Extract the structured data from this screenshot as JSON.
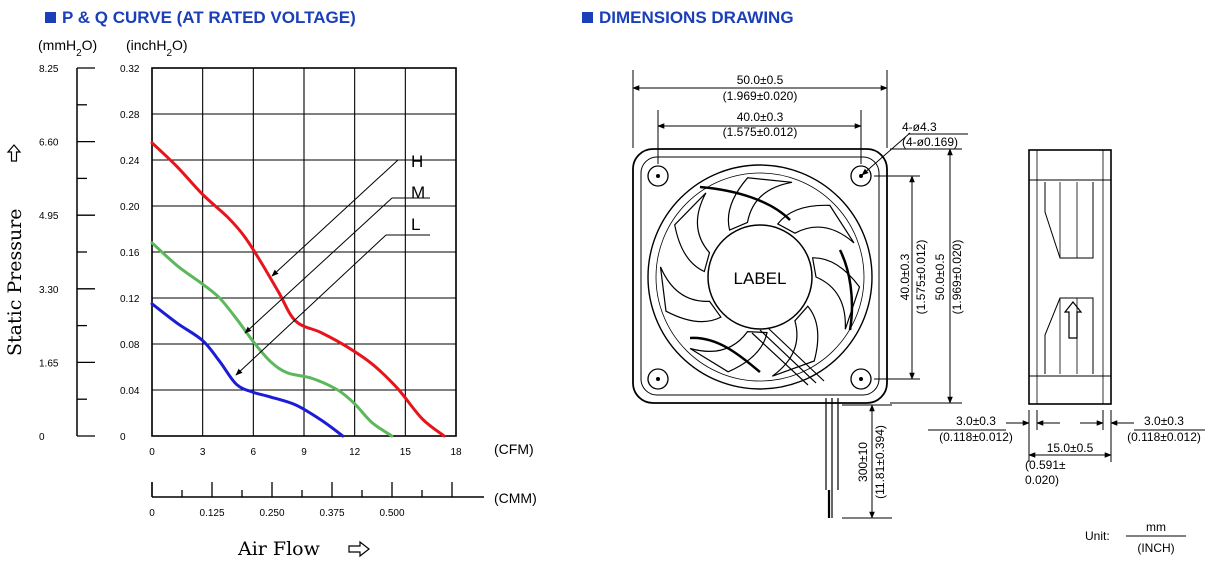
{
  "pq_title": "P & Q CURVE (AT RATED VOLTAGE)",
  "dim_title": "DIMENSIONS DRAWING",
  "chart_data": {
    "type": "line",
    "title": "P & Q CURVE (AT RATED VOLTAGE)",
    "ylabel": "Static Pressure",
    "xlabel": "Air Flow",
    "y_unit_left": "(mmH2O)",
    "y_unit_right": "(inchH2O)",
    "x_unit": "(CFM)",
    "x2_unit": "(CMM)",
    "xlim": [
      0,
      18
    ],
    "ylim_inch": [
      0,
      0.32
    ],
    "x_ticks": [
      "0",
      "3",
      "6",
      "9",
      "12",
      "15",
      "18"
    ],
    "x2_ticks": [
      "0",
      "0.125",
      "0.250",
      "0.375",
      "0.500"
    ],
    "y_ticks_inch": [
      "0",
      "0.04",
      "0.08",
      "0.12",
      "0.16",
      "0.20",
      "0.24",
      "0.28",
      "0.32"
    ],
    "y_ticks_mm": [
      "0",
      "1.65",
      "3.30",
      "4.95",
      "6.60",
      "8.25"
    ],
    "series": [
      {
        "name": "H",
        "color": "#e8141b",
        "x": [
          0,
          1.5,
          3,
          4.5,
          5.5,
          6.5,
          7.5,
          8.5,
          10,
          11.5,
          13,
          14.5,
          16,
          17.3
        ],
        "y": [
          0.255,
          0.234,
          0.21,
          0.19,
          0.173,
          0.15,
          0.125,
          0.1,
          0.09,
          0.078,
          0.063,
          0.042,
          0.015,
          0
        ]
      },
      {
        "name": "M",
        "color": "#5cb85c",
        "x": [
          0,
          1.5,
          3,
          4,
          5,
          6,
          7,
          8,
          9.5,
          11,
          12,
          13,
          14.2
        ],
        "y": [
          0.168,
          0.148,
          0.132,
          0.12,
          0.102,
          0.082,
          0.065,
          0.055,
          0.05,
          0.04,
          0.028,
          0.012,
          0
        ]
      },
      {
        "name": "L",
        "color": "#1c1cd8",
        "x": [
          0,
          1.5,
          3,
          4,
          5,
          6,
          7,
          8.5,
          10,
          11.3
        ],
        "y": [
          0.115,
          0.098,
          0.083,
          0.065,
          0.045,
          0.038,
          0.034,
          0.027,
          0.014,
          0
        ]
      }
    ]
  },
  "dims": {
    "overall_w": "50.0±0.5",
    "overall_w_in": "(1.969±0.020)",
    "hole_w": "40.0±0.3",
    "hole_w_in": "(1.575±0.012)",
    "hole_dia": "4-ø4.3",
    "hole_dia_in": "(4-ø0.169)",
    "hole_h": "40.0±0.3",
    "hole_h_in": "(1.575±0.012)",
    "overall_h": "50.0±0.5",
    "overall_h_in": "(1.969±0.020)",
    "lead": "300±10",
    "lead_in": "(11.81±0.394)",
    "label": "LABEL",
    "side_l": "3.0±0.3",
    "side_l_in": "(0.118±0.012)",
    "side_r": "3.0±0.3",
    "side_r_in": "(0.118±0.012)",
    "depth": "15.0±0.5",
    "depth_in1": "(0.591±",
    "depth_in2": "0.020)",
    "unit_prefix": "Unit:",
    "unit_num": "mm",
    "unit_den": "(INCH)"
  }
}
